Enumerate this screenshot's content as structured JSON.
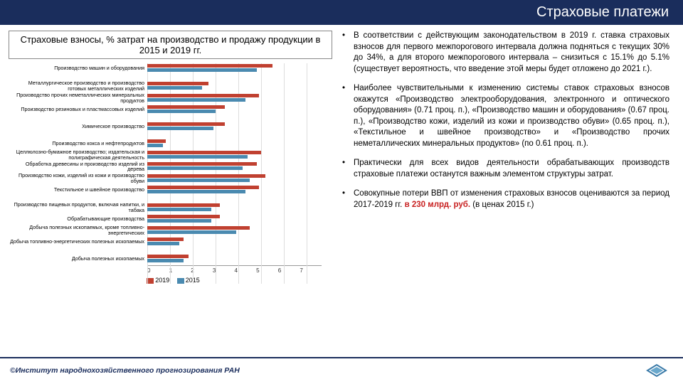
{
  "header": {
    "title": "Страховые платежи"
  },
  "chart": {
    "title": "Страховые взносы, % затрат на производство и продажу продукции в 2015 и 2019 гг.",
    "type": "bar",
    "xlim": [
      0,
      7.5
    ],
    "xticks": [
      0,
      1,
      2,
      3,
      4,
      5,
      6,
      7
    ],
    "color_2019": "#c04030",
    "color_2015": "#4a8ab0",
    "legend_2019": "2019",
    "legend_2015": "2015",
    "categories": [
      {
        "label": "Производство машин и оборудования",
        "v2019": 5.5,
        "v2015": 4.8
      },
      {
        "label": "",
        "v2019": null,
        "v2015": null
      },
      {
        "label": "Металлургическое производство и производство готовых металлических изделий",
        "v2019": 2.7,
        "v2015": 2.4
      },
      {
        "label": "Производство прочих неметаллических минеральных продуктов",
        "v2019": 4.9,
        "v2015": 4.3
      },
      {
        "label": "Производство резиновых и пластмассовых изделий",
        "v2019": 3.4,
        "v2015": 3.0
      },
      {
        "label": "",
        "v2019": null,
        "v2015": null
      },
      {
        "label": "Химическое производство",
        "v2019": 3.4,
        "v2015": 2.9
      },
      {
        "label": "",
        "v2019": null,
        "v2015": null
      },
      {
        "label": "Производство кокса и нефтепродуктов",
        "v2019": 0.8,
        "v2015": 0.7
      },
      {
        "label": "Целлюлозно-бумажное производство; издательская и полиграфическая деятельность",
        "v2019": 5.0,
        "v2015": 4.4
      },
      {
        "label": "Обработка древесины и производство изделий из дерева",
        "v2019": 4.8,
        "v2015": 4.2
      },
      {
        "label": "Производство кожи, изделий из кожи и производство обуви",
        "v2019": 5.2,
        "v2015": 4.5
      },
      {
        "label": "Текстильное и швейное производство",
        "v2019": 4.9,
        "v2015": 4.3
      },
      {
        "label": "",
        "v2019": null,
        "v2015": null
      },
      {
        "label": "Производство пищевых продуктов, включая напитки, и табака",
        "v2019": 3.2,
        "v2015": 2.8
      },
      {
        "label": "Обрабатывающие производства",
        "v2019": 3.2,
        "v2015": 2.8
      },
      {
        "label": "Добыча полезных ископаемых, кроме топливно-энергетических",
        "v2019": 4.5,
        "v2015": 3.9
      },
      {
        "label": "Добыча топливно-энергетических полезных ископаемых",
        "v2019": 1.6,
        "v2015": 1.4
      },
      {
        "label": "",
        "v2019": null,
        "v2015": null
      },
      {
        "label": "Добыча полезных ископаемых",
        "v2019": 1.8,
        "v2015": 1.6
      }
    ]
  },
  "bullets": [
    {
      "text": "В соответствии с действующим законодательством в 2019 г. ставка страховых взносов для первого межпорогового интервала должна подняться с текущих 30% до 34%, а для второго межпорогового интервала – снизиться с 15.1% до 5.1% (существует вероятность, что введение этой меры будет отложено до 2021 г.)."
    },
    {
      "text": "Наиболее чувствительными к изменению системы ставок страховых взносов окажутся «Производство электрооборудования, электронного и оптического оборудования» (0.71 проц. п.), «Производство машин и оборудования» (0.67 проц. п.), «Производство кожи, изделий из кожи и производство обуви» (0.65 проц. п.), «Текстильное и швейное производство» и «Производство прочих неметаллических минеральных продуктов» (по 0.61 проц. п.)."
    },
    {
      "text": "Практически для всех видов деятельности обрабатывающих производств страховые платежи останутся важным элементом структуры затрат."
    },
    {
      "text": "Совокупные потери ВВП от изменения страховых взносов оцениваются за период 2017-2019 гг. ",
      "highlight": "в 230 млрд. руб.",
      "text2": " (в ценах 2015 г.)"
    }
  ],
  "footer": {
    "text": "©Институт народнохозяйственного прогнозирования РАН"
  },
  "colors": {
    "brand": "#1a2d5c"
  }
}
